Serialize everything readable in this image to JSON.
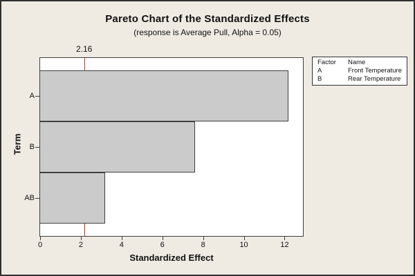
{
  "chart": {
    "title": "Pareto Chart of the Standardized Effects",
    "subtitle": "(response is Average Pull, Alpha = 0.05)",
    "xlabel": "Standardized Effect",
    "ylabel": "Term",
    "reference_label": "2.16"
  },
  "chart_data": {
    "type": "bar",
    "orientation": "horizontal",
    "title": "Pareto Chart of the Standardized Effects",
    "subtitle": "(response is Average Pull, Alpha = 0.05)",
    "xlabel": "Standardized Effect",
    "ylabel": "Term",
    "categories": [
      "A",
      "B",
      "AB"
    ],
    "values": [
      12.2,
      7.6,
      3.2
    ],
    "reference_line": 2.16,
    "reference_label": "2.16",
    "xlim": [
      0,
      12.9
    ],
    "xticks": [
      0,
      2,
      4,
      6,
      8,
      10,
      12
    ],
    "grid": false,
    "legend_position": "upper-right"
  },
  "legend": {
    "headers": [
      "Factor",
      "Name"
    ],
    "rows": [
      {
        "factor": "A",
        "name": "Front Temperature"
      },
      {
        "factor": "B",
        "name": "Rear Temperature"
      }
    ]
  },
  "colors": {
    "background": "#EFEBE3",
    "plot_background": "#FFFFFF",
    "bar_fill": "#CBCBCB",
    "bar_border": "#3F3F3F",
    "axis": "#3F3F3F",
    "reference_line": "#B5352A",
    "text": "#111111"
  }
}
